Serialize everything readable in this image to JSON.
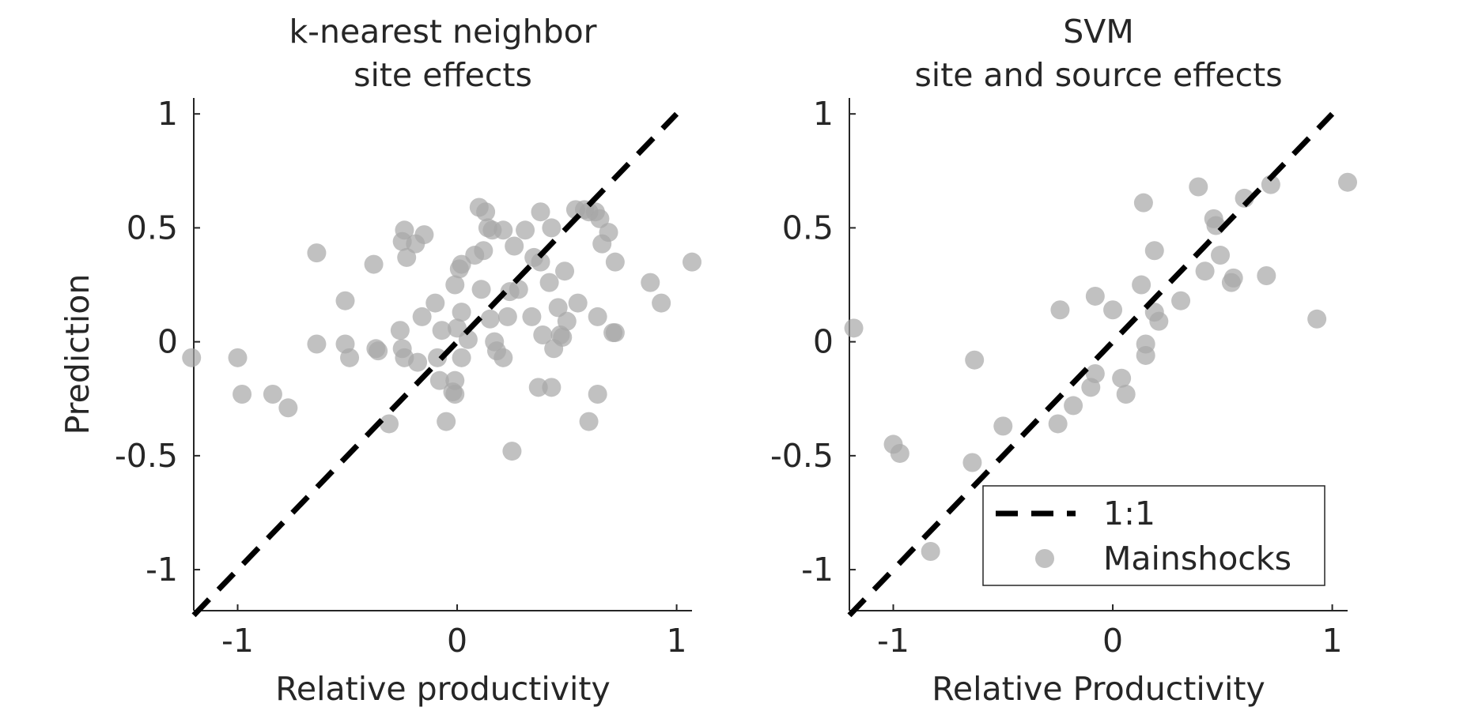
{
  "chart_data": [
    {
      "type": "scatter",
      "title": [
        "k-nearest neighbor",
        "site effects"
      ],
      "xlabel": "Relative productivity",
      "ylabel": "Prediction",
      "xlim": [
        -1.2,
        1.07
      ],
      "ylim": [
        -1.18,
        1.07
      ],
      "xticks": [
        -1,
        0,
        1
      ],
      "xtick_labels": [
        "-1",
        "0",
        "1"
      ],
      "yticks": [
        -1,
        -0.5,
        0,
        0.5,
        1
      ],
      "ytick_labels": [
        "-1",
        "-0.5",
        "0",
        "0.5",
        "1"
      ],
      "grid": false,
      "reference_line": {
        "name": "1:1",
        "from": [
          -1.2,
          -1.2
        ],
        "to": [
          1.0,
          1.0
        ],
        "style": "dashed",
        "color": "#000000"
      },
      "series": [
        {
          "name": "Mainshocks",
          "color": "#a6a6a6",
          "points": [
            [
              -1.21,
              -0.07
            ],
            [
              -1.0,
              -0.07
            ],
            [
              -0.98,
              -0.23
            ],
            [
              -0.84,
              -0.23
            ],
            [
              -0.77,
              -0.29
            ],
            [
              -0.64,
              0.39
            ],
            [
              -0.64,
              -0.01
            ],
            [
              -0.51,
              0.18
            ],
            [
              -0.51,
              -0.01
            ],
            [
              -0.49,
              -0.07
            ],
            [
              -0.38,
              0.34
            ],
            [
              -0.37,
              -0.03
            ],
            [
              -0.36,
              -0.04
            ],
            [
              -0.31,
              -0.36
            ],
            [
              -0.25,
              0.44
            ],
            [
              -0.24,
              0.49
            ],
            [
              -0.23,
              0.37
            ],
            [
              -0.19,
              0.43
            ],
            [
              -0.15,
              0.47
            ],
            [
              -0.26,
              0.05
            ],
            [
              -0.25,
              -0.03
            ],
            [
              -0.24,
              -0.07
            ],
            [
              -0.18,
              -0.09
            ],
            [
              -0.16,
              0.11
            ],
            [
              -0.1,
              0.17
            ],
            [
              -0.09,
              -0.07
            ],
            [
              -0.08,
              -0.17
            ],
            [
              -0.07,
              0.05
            ],
            [
              -0.05,
              -0.35
            ],
            [
              -0.02,
              -0.22
            ],
            [
              -0.01,
              0.25
            ],
            [
              -0.01,
              -0.23
            ],
            [
              -0.01,
              -0.17
            ],
            [
              0.0,
              0.06
            ],
            [
              0.01,
              0.32
            ],
            [
              0.02,
              0.34
            ],
            [
              0.02,
              0.13
            ],
            [
              0.02,
              -0.07
            ],
            [
              0.05,
              0.01
            ],
            [
              0.08,
              0.38
            ],
            [
              0.1,
              0.59
            ],
            [
              0.11,
              0.23
            ],
            [
              0.12,
              0.4
            ],
            [
              0.13,
              0.57
            ],
            [
              0.14,
              0.5
            ],
            [
              0.15,
              0.1
            ],
            [
              0.16,
              0.49
            ],
            [
              0.17,
              0.0
            ],
            [
              0.18,
              -0.04
            ],
            [
              0.21,
              0.49
            ],
            [
              0.21,
              -0.07
            ],
            [
              0.23,
              0.11
            ],
            [
              0.24,
              0.22
            ],
            [
              0.25,
              -0.48
            ],
            [
              0.26,
              0.42
            ],
            [
              0.28,
              0.23
            ],
            [
              0.31,
              0.49
            ],
            [
              0.34,
              0.11
            ],
            [
              0.35,
              0.37
            ],
            [
              0.37,
              -0.2
            ],
            [
              0.38,
              0.57
            ],
            [
              0.38,
              0.35
            ],
            [
              0.39,
              0.03
            ],
            [
              0.42,
              0.26
            ],
            [
              0.43,
              0.5
            ],
            [
              0.43,
              -0.2
            ],
            [
              0.44,
              -0.03
            ],
            [
              0.46,
              0.15
            ],
            [
              0.47,
              0.03
            ],
            [
              0.48,
              0.02
            ],
            [
              0.49,
              0.31
            ],
            [
              0.5,
              0.09
            ],
            [
              0.54,
              0.58
            ],
            [
              0.55,
              0.17
            ],
            [
              0.58,
              0.58
            ],
            [
              0.6,
              0.57
            ],
            [
              0.6,
              -0.35
            ],
            [
              0.63,
              0.57
            ],
            [
              0.64,
              0.11
            ],
            [
              0.64,
              -0.23
            ],
            [
              0.65,
              0.54
            ],
            [
              0.66,
              0.43
            ],
            [
              0.69,
              0.48
            ],
            [
              0.71,
              0.04
            ],
            [
              0.72,
              0.04
            ],
            [
              0.72,
              0.35
            ],
            [
              0.88,
              0.26
            ],
            [
              0.93,
              0.17
            ],
            [
              1.07,
              0.35
            ]
          ]
        }
      ]
    },
    {
      "type": "scatter",
      "title": [
        "SVM",
        "site and source effects"
      ],
      "xlabel": "Relative Productivity",
      "ylabel": "",
      "xlim": [
        -1.2,
        1.07
      ],
      "ylim": [
        -1.18,
        1.07
      ],
      "xticks": [
        -1,
        0,
        1
      ],
      "xtick_labels": [
        "-1",
        "0",
        "1"
      ],
      "yticks": [
        -1,
        -0.5,
        0,
        0.5,
        1
      ],
      "ytick_labels": [
        "-1",
        "-0.5",
        "0",
        "0.5",
        "1"
      ],
      "grid": false,
      "reference_line": {
        "name": "1:1",
        "from": [
          -1.2,
          -1.2
        ],
        "to": [
          1.0,
          1.0
        ],
        "style": "dashed",
        "color": "#000000"
      },
      "legend": {
        "placement": "lower-right",
        "entries": [
          {
            "label": "1:1",
            "marker": "dashed-line"
          },
          {
            "label": "Mainshocks",
            "marker": "circle"
          }
        ]
      },
      "series": [
        {
          "name": "Mainshocks",
          "color": "#a6a6a6",
          "points": [
            [
              -1.18,
              0.06
            ],
            [
              -1.0,
              -0.45
            ],
            [
              -0.97,
              -0.49
            ],
            [
              -0.83,
              -0.92
            ],
            [
              -0.64,
              -0.53
            ],
            [
              -0.63,
              -0.08
            ],
            [
              -0.5,
              -0.37
            ],
            [
              -0.25,
              -0.36
            ],
            [
              -0.24,
              0.14
            ],
            [
              -0.18,
              -0.28
            ],
            [
              -0.1,
              -0.2
            ],
            [
              -0.08,
              -0.14
            ],
            [
              -0.08,
              0.2
            ],
            [
              0.0,
              0.14
            ],
            [
              0.04,
              -0.16
            ],
            [
              0.06,
              -0.23
            ],
            [
              0.13,
              0.25
            ],
            [
              0.14,
              0.61
            ],
            [
              0.15,
              -0.06
            ],
            [
              0.15,
              -0.01
            ],
            [
              0.19,
              0.13
            ],
            [
              0.19,
              0.4
            ],
            [
              0.21,
              0.09
            ],
            [
              0.31,
              0.18
            ],
            [
              0.39,
              0.68
            ],
            [
              0.42,
              0.31
            ],
            [
              0.46,
              0.54
            ],
            [
              0.47,
              0.51
            ],
            [
              0.49,
              0.38
            ],
            [
              0.54,
              0.26
            ],
            [
              0.55,
              0.28
            ],
            [
              0.6,
              0.63
            ],
            [
              0.7,
              0.29
            ],
            [
              0.72,
              0.69
            ],
            [
              0.93,
              0.1
            ],
            [
              1.07,
              0.7
            ]
          ]
        }
      ]
    }
  ]
}
